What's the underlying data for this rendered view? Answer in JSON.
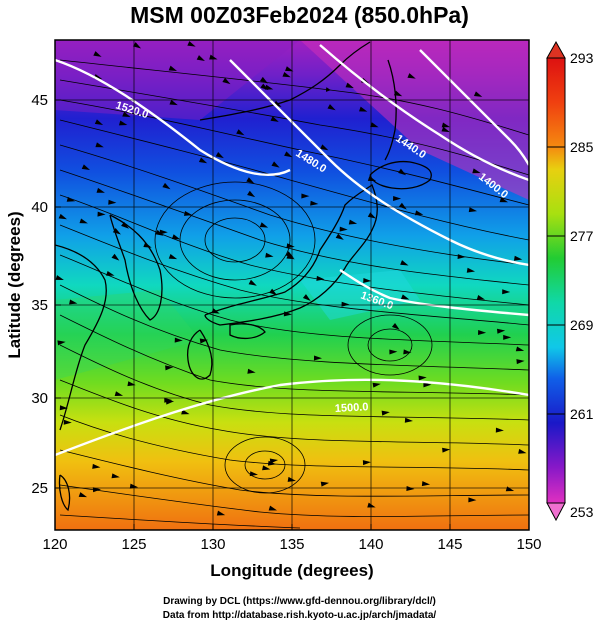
{
  "title": "MSM 00Z03Feb2024 (850.0hPa)",
  "map": {
    "xlabel": "Longitude (degrees)",
    "ylabel": "Latitude  (degrees)",
    "lon_range": [
      120,
      150
    ],
    "lat_range": [
      23,
      48
    ],
    "lon_ticks": [
      "120",
      "125",
      "130",
      "135",
      "140",
      "145",
      "150"
    ],
    "lat_ticks": [
      "25",
      "30",
      "35",
      "40",
      "45"
    ],
    "field": "temperature (shaded) with geopotential height contours and wind streamlines",
    "contour_labels": [
      "1520.0",
      "1480.0",
      "1440.0",
      "1400.0",
      "1360.0",
      "1500.0"
    ]
  },
  "colorbar": {
    "min": 253,
    "max": 293,
    "tick_labels": [
      "293",
      "285",
      "277",
      "269",
      "261",
      "253"
    ],
    "colors": {
      "293": "#dd1111",
      "289": "#f58a10",
      "285": "#e8d010",
      "281": "#a8e010",
      "277": "#22cc33",
      "273": "#10d8a8",
      "269": "#10c8e8",
      "265": "#1060e8",
      "261": "#1a18c8",
      "257": "#8818c8",
      "253": "#e030c0"
    }
  },
  "credits": {
    "line1": "Drawing by DCL (https://www.gfd-dennou.org/library/dcl/)",
    "line2": "Data from http://database.rish.kyoto-u.ac.jp/arch/jmadata/"
  }
}
